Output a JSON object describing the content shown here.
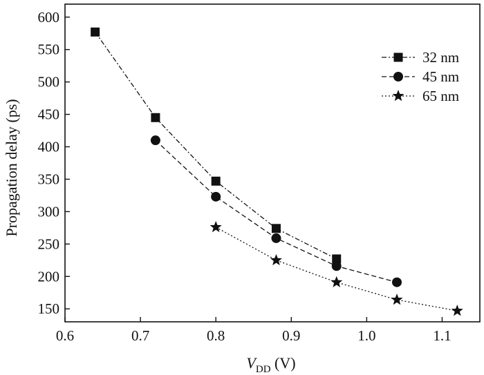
{
  "chart_data": {
    "type": "line",
    "title": "",
    "xlabel_main": "V",
    "xlabel_sub": "DD",
    "xlabel_unit": " (V)",
    "ylabel": "Propagation delay (ps)",
    "xlim": [
      0.6,
      1.15
    ],
    "ylim": [
      130,
      620
    ],
    "xticks": [
      0.6,
      0.7,
      0.8,
      0.9,
      1.0,
      1.1
    ],
    "xtick_labels": [
      "0.6",
      "0.7",
      "0.8",
      "0.9",
      "1.0",
      "1.1"
    ],
    "yticks": [
      150,
      200,
      250,
      300,
      350,
      400,
      450,
      500,
      550,
      600
    ],
    "ytick_labels": [
      "150",
      "200",
      "250",
      "300",
      "350",
      "400",
      "450",
      "500",
      "550",
      "600"
    ],
    "grid": false,
    "legend_position": "top-right",
    "series": [
      {
        "name": "32 nm",
        "marker": "square",
        "line_style": "dash-dot",
        "x": [
          0.64,
          0.72,
          0.8,
          0.88,
          0.96
        ],
        "y": [
          577,
          445,
          347,
          274,
          227
        ]
      },
      {
        "name": "45 nm",
        "marker": "circle",
        "line_style": "dashed",
        "x": [
          0.72,
          0.8,
          0.88,
          0.96,
          1.04
        ],
        "y": [
          410,
          323,
          259,
          216,
          191
        ]
      },
      {
        "name": "65 nm",
        "marker": "star",
        "line_style": "dotted",
        "x": [
          0.8,
          0.88,
          0.96,
          1.04,
          1.12
        ],
        "y": [
          276,
          225,
          191,
          164,
          147
        ]
      }
    ]
  }
}
